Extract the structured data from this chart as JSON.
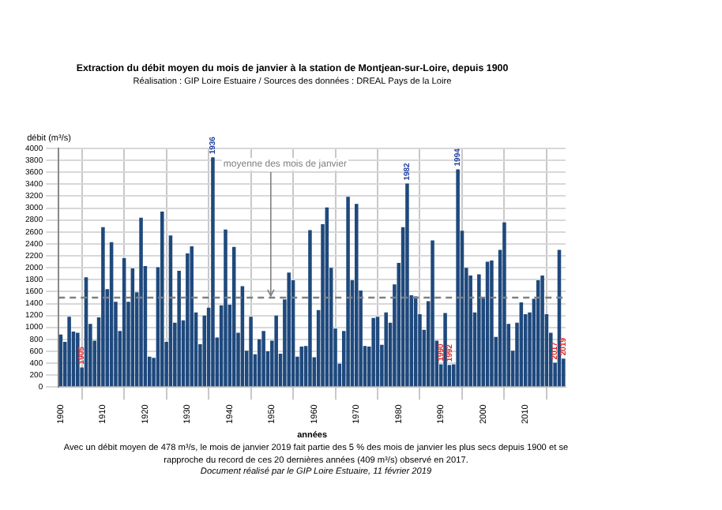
{
  "chart_data": {
    "type": "bar",
    "title": "Extraction du débit moyen du mois de janvier à la station de Montjean-sur-Loire, depuis 1900",
    "subtitle": "Réalisation : GIP Loire Estuaire / Sources des données : DREAL Pays de la Loire",
    "xlabel": "années",
    "ylabel": "débit (m³/s)",
    "x": [
      1900,
      1901,
      1902,
      1903,
      1904,
      1905,
      1906,
      1907,
      1908,
      1909,
      1910,
      1911,
      1912,
      1913,
      1914,
      1915,
      1916,
      1917,
      1918,
      1919,
      1920,
      1921,
      1922,
      1923,
      1924,
      1925,
      1926,
      1927,
      1928,
      1929,
      1930,
      1931,
      1932,
      1933,
      1934,
      1935,
      1936,
      1937,
      1938,
      1939,
      1940,
      1941,
      1942,
      1943,
      1944,
      1945,
      1946,
      1947,
      1948,
      1949,
      1950,
      1951,
      1952,
      1953,
      1954,
      1955,
      1956,
      1957,
      1958,
      1959,
      1960,
      1961,
      1962,
      1963,
      1964,
      1965,
      1966,
      1967,
      1968,
      1969,
      1970,
      1971,
      1972,
      1973,
      1974,
      1975,
      1976,
      1977,
      1978,
      1979,
      1980,
      1981,
      1982,
      1983,
      1984,
      1985,
      1986,
      1987,
      1988,
      1989,
      1990,
      1991,
      1992,
      1993,
      1994,
      1995,
      1996,
      1997,
      1998,
      1999,
      2000,
      2001,
      2002,
      2003,
      2004,
      2005,
      2006,
      2007,
      2008,
      2009,
      2010,
      2011,
      2012,
      2013,
      2014,
      2015,
      2016,
      2017,
      2018,
      2019
    ],
    "values": [
      880,
      760,
      1180,
      930,
      910,
      330,
      1840,
      1060,
      780,
      1170,
      2680,
      1640,
      2430,
      1430,
      940,
      2160,
      1430,
      1990,
      1590,
      2840,
      2030,
      510,
      490,
      2010,
      2940,
      760,
      2540,
      1080,
      1950,
      1120,
      2240,
      2360,
      1250,
      720,
      1200,
      1330,
      3850,
      830,
      1370,
      2640,
      1380,
      2350,
      910,
      1690,
      610,
      1180,
      550,
      800,
      940,
      600,
      780,
      1200,
      560,
      1470,
      1920,
      1790,
      510,
      680,
      690,
      2630,
      500,
      1290,
      2730,
      3010,
      2000,
      980,
      390,
      940,
      3190,
      1790,
      3070,
      1620,
      690,
      680,
      1160,
      1180,
      710,
      1250,
      1080,
      1720,
      2080,
      2680,
      3410,
      1540,
      1520,
      1220,
      960,
      1440,
      2460,
      780,
      380,
      1240,
      370,
      380,
      3650,
      2620,
      2000,
      1870,
      1250,
      1890,
      1490,
      2100,
      2120,
      840,
      2300,
      2760,
      1060,
      610,
      1080,
      1420,
      1220,
      1250,
      1480,
      1790,
      1870,
      1220,
      910,
      409,
      2300,
      478
    ],
    "color": "#1f497d",
    "xlim": [
      1899.5,
      2019.5
    ],
    "xticks": [
      1900,
      1910,
      1920,
      1930,
      1940,
      1950,
      1960,
      1970,
      1980,
      1990,
      2000,
      2010
    ],
    "ylim": [
      0,
      4000
    ],
    "yticks": [
      0,
      200,
      400,
      600,
      800,
      1000,
      1200,
      1400,
      1600,
      1800,
      2000,
      2200,
      2400,
      2600,
      2800,
      3000,
      3200,
      3400,
      3600,
      3800,
      4000
    ],
    "grid": true,
    "legend": false,
    "ref_lines": [
      {
        "axis": "y",
        "value": 1500,
        "label": "moyenne des mois de janvier",
        "color": "#808080",
        "line_style": "dashed"
      }
    ],
    "annotations": [
      {
        "text": "1905",
        "x": 1905,
        "y": 330
      },
      {
        "text": "1936",
        "x": 1936,
        "y": 3850
      },
      {
        "text": "1982",
        "x": 1982,
        "y": 3410
      },
      {
        "text": "1990",
        "x": 1990,
        "y": 380
      },
      {
        "text": "1992",
        "x": 1992,
        "y": 370
      },
      {
        "text": "1994",
        "x": 1994,
        "y": 3650
      },
      {
        "text": "2017",
        "x": 2017,
        "y": 409
      },
      {
        "text": "2019",
        "x": 2019,
        "y": 478
      },
      "Avec un débit moyen de 478 m³/s, le mois de janvier 2019 fait partie des 5 % des mois de janvier les plus secs depuis 1900 et se rapproche du record de ces 20 dernières années (409 m³/s) observé en 2017.",
      "Document réalisé par le GIP Loire Estuaire, 11 février 2019"
    ]
  }
}
